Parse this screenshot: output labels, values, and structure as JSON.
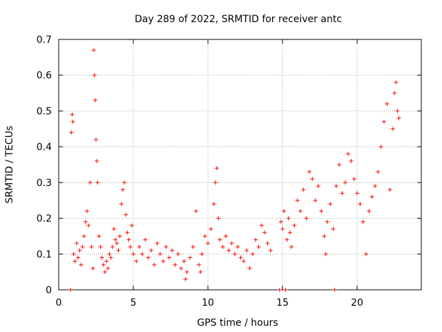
{
  "chart_data": {
    "type": "scatter",
    "title": "Day 289 of 2022, SRMTID for receiver antc",
    "xlabel": "GPS time / hours",
    "ylabel": "SRMTID / TECUs",
    "xlim": [
      0,
      24.3
    ],
    "ylim": [
      0,
      0.7
    ],
    "xticks": [
      "0",
      "5",
      "10",
      "15",
      "20"
    ],
    "yticks": [
      "0",
      "0.1",
      "0.2",
      "0.3",
      "0.4",
      "0.5",
      "0.6",
      "0.7"
    ],
    "grid": true,
    "marker": "plus",
    "color": "#ff0000",
    "series": [
      {
        "name": "SRMTID",
        "points": [
          [
            0.8,
            0.0
          ],
          [
            0.85,
            0.44
          ],
          [
            0.9,
            0.49
          ],
          [
            0.95,
            0.47
          ],
          [
            1.0,
            0.1
          ],
          [
            1.1,
            0.08
          ],
          [
            1.2,
            0.13
          ],
          [
            1.3,
            0.09
          ],
          [
            1.4,
            0.11
          ],
          [
            1.5,
            0.07
          ],
          [
            1.6,
            0.12
          ],
          [
            1.7,
            0.15
          ],
          [
            1.8,
            0.19
          ],
          [
            1.9,
            0.22
          ],
          [
            2.0,
            0.18
          ],
          [
            2.1,
            0.3
          ],
          [
            2.2,
            0.12
          ],
          [
            2.3,
            0.06
          ],
          [
            2.35,
            0.67
          ],
          [
            2.4,
            0.6
          ],
          [
            2.45,
            0.53
          ],
          [
            2.5,
            0.42
          ],
          [
            2.55,
            0.36
          ],
          [
            2.6,
            0.3
          ],
          [
            2.7,
            0.15
          ],
          [
            2.8,
            0.12
          ],
          [
            2.9,
            0.09
          ],
          [
            3.0,
            0.07
          ],
          [
            3.1,
            0.05
          ],
          [
            3.2,
            0.08
          ],
          [
            3.3,
            0.06
          ],
          [
            3.4,
            0.1
          ],
          [
            3.5,
            0.09
          ],
          [
            3.6,
            0.12
          ],
          [
            3.7,
            0.17
          ],
          [
            3.8,
            0.14
          ],
          [
            3.9,
            0.13
          ],
          [
            4.0,
            0.11
          ],
          [
            4.1,
            0.15
          ],
          [
            4.2,
            0.24
          ],
          [
            4.3,
            0.28
          ],
          [
            4.4,
            0.3
          ],
          [
            4.5,
            0.21
          ],
          [
            4.6,
            0.16
          ],
          [
            4.7,
            0.14
          ],
          [
            4.8,
            0.12
          ],
          [
            4.9,
            0.18
          ],
          [
            5.0,
            0.1
          ],
          [
            5.2,
            0.08
          ],
          [
            5.4,
            0.12
          ],
          [
            5.6,
            0.1
          ],
          [
            5.8,
            0.14
          ],
          [
            6.0,
            0.09
          ],
          [
            6.2,
            0.11
          ],
          [
            6.4,
            0.07
          ],
          [
            6.6,
            0.13
          ],
          [
            6.8,
            0.1
          ],
          [
            7.0,
            0.08
          ],
          [
            7.2,
            0.12
          ],
          [
            7.4,
            0.09
          ],
          [
            7.6,
            0.11
          ],
          [
            7.8,
            0.07
          ],
          [
            8.0,
            0.1
          ],
          [
            8.2,
            0.06
          ],
          [
            8.4,
            0.08
          ],
          [
            8.5,
            0.03
          ],
          [
            8.6,
            0.05
          ],
          [
            8.8,
            0.09
          ],
          [
            9.0,
            0.12
          ],
          [
            9.2,
            0.22
          ],
          [
            9.4,
            0.07
          ],
          [
            9.5,
            0.05
          ],
          [
            9.6,
            0.1
          ],
          [
            9.8,
            0.15
          ],
          [
            10.0,
            0.13
          ],
          [
            10.2,
            0.17
          ],
          [
            10.4,
            0.24
          ],
          [
            10.5,
            0.3
          ],
          [
            10.6,
            0.34
          ],
          [
            10.7,
            0.2
          ],
          [
            10.8,
            0.14
          ],
          [
            11.0,
            0.12
          ],
          [
            11.2,
            0.15
          ],
          [
            11.4,
            0.11
          ],
          [
            11.6,
            0.13
          ],
          [
            11.8,
            0.1
          ],
          [
            12.0,
            0.12
          ],
          [
            12.2,
            0.09
          ],
          [
            12.4,
            0.08
          ],
          [
            12.6,
            0.11
          ],
          [
            12.8,
            0.06
          ],
          [
            13.0,
            0.1
          ],
          [
            13.2,
            0.14
          ],
          [
            13.4,
            0.12
          ],
          [
            13.6,
            0.18
          ],
          [
            13.8,
            0.16
          ],
          [
            14.0,
            0.13
          ],
          [
            14.2,
            0.11
          ],
          [
            14.8,
            0.0
          ],
          [
            14.9,
            0.19
          ],
          [
            15.0,
            0.17
          ],
          [
            15.1,
            0.22
          ],
          [
            15.2,
            0.0
          ],
          [
            15.3,
            0.14
          ],
          [
            15.4,
            0.2
          ],
          [
            15.5,
            0.16
          ],
          [
            15.6,
            0.12
          ],
          [
            15.8,
            0.18
          ],
          [
            16.0,
            0.25
          ],
          [
            16.2,
            0.22
          ],
          [
            16.4,
            0.28
          ],
          [
            16.6,
            0.2
          ],
          [
            16.8,
            0.33
          ],
          [
            17.0,
            0.31
          ],
          [
            17.2,
            0.25
          ],
          [
            17.4,
            0.29
          ],
          [
            17.6,
            0.22
          ],
          [
            17.8,
            0.15
          ],
          [
            17.9,
            0.1
          ],
          [
            18.0,
            0.19
          ],
          [
            18.2,
            0.24
          ],
          [
            18.4,
            0.17
          ],
          [
            18.5,
            0.0
          ],
          [
            18.6,
            0.29
          ],
          [
            18.8,
            0.35
          ],
          [
            19.0,
            0.27
          ],
          [
            19.2,
            0.3
          ],
          [
            19.4,
            0.38
          ],
          [
            19.6,
            0.36
          ],
          [
            19.8,
            0.31
          ],
          [
            20.0,
            0.27
          ],
          [
            20.2,
            0.24
          ],
          [
            20.4,
            0.19
          ],
          [
            20.6,
            0.1
          ],
          [
            20.8,
            0.22
          ],
          [
            21.0,
            0.26
          ],
          [
            21.2,
            0.29
          ],
          [
            21.4,
            0.33
          ],
          [
            21.6,
            0.4
          ],
          [
            21.8,
            0.47
          ],
          [
            22.0,
            0.52
          ],
          [
            22.2,
            0.28
          ],
          [
            22.4,
            0.45
          ],
          [
            22.5,
            0.55
          ],
          [
            22.6,
            0.58
          ],
          [
            22.7,
            0.5
          ],
          [
            22.8,
            0.48
          ]
        ]
      }
    ]
  }
}
